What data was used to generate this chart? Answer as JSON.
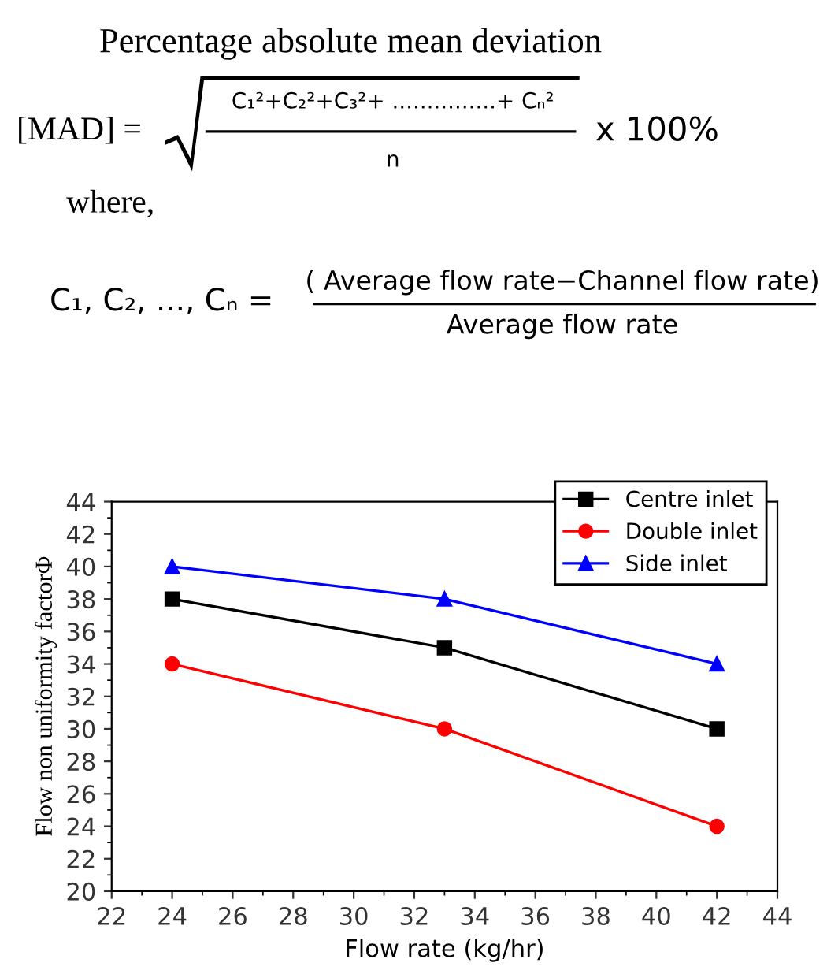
{
  "chart_data": {
    "type": "line",
    "xlabel": "Flow rate (kg/hr)",
    "ylabel": "Flow non uniformity factorΦ",
    "x": [
      24,
      33,
      42
    ],
    "series": [
      {
        "name": "Centre inlet",
        "color": "#000000",
        "marker": "square",
        "values": [
          38,
          35,
          30
        ]
      },
      {
        "name": "Double inlet",
        "color": "#ff0000",
        "marker": "circle",
        "values": [
          34,
          30,
          24
        ]
      },
      {
        "name": "Side inlet",
        "color": "#0000ff",
        "marker": "triangle",
        "values": [
          40,
          38,
          34
        ]
      }
    ],
    "xlim": [
      22,
      44
    ],
    "xticks": [
      22,
      24,
      26,
      28,
      30,
      32,
      34,
      36,
      38,
      40,
      42,
      44
    ],
    "ylim": [
      20,
      44
    ],
    "yticks": [
      20,
      22,
      24,
      26,
      28,
      30,
      32,
      34,
      36,
      38,
      40,
      42,
      44
    ],
    "legend": "top right",
    "grid": false,
    "line_style": "solid",
    "annotations": [
      "Percentage absolute mean deviation",
      "[MAD] =",
      "C₁²+C₂²+C₃²+ ...............+ Cₙ²",
      "n",
      "x 100%",
      "where,",
      "C₁, C₂, ..., Cₙ =",
      "( Average flow rate−Channel flow rate)",
      "Average flow rate"
    ]
  }
}
